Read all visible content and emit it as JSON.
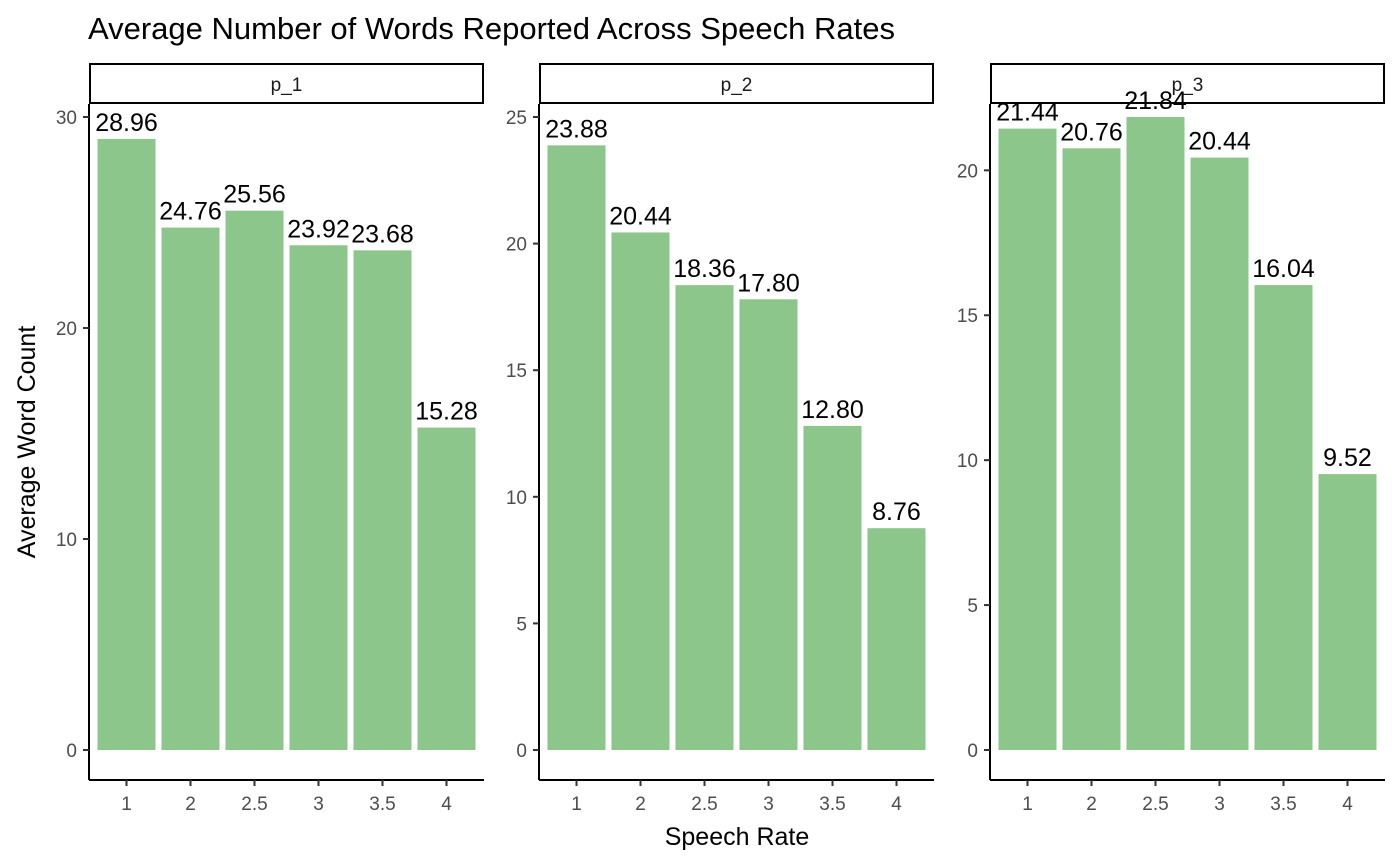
{
  "chart_data": {
    "type": "bar",
    "title": "Average Number of Words Reported Across Speech Rates",
    "xlabel": "Speech Rate",
    "ylabel": "Average Word Count",
    "categories": [
      "1",
      "2",
      "2.5",
      "3",
      "3.5",
      "4"
    ],
    "bar_color": "#8dc68a",
    "grid": false,
    "legend": "none",
    "panels": [
      {
        "name": "p_1",
        "values": [
          28.96,
          24.76,
          25.56,
          23.92,
          23.68,
          15.28
        ],
        "labels": [
          "28.96",
          "24.76",
          "25.56",
          "23.92",
          "23.68",
          "15.28"
        ],
        "ylim": [
          0,
          30
        ],
        "yticks": [
          0,
          10,
          20,
          30
        ]
      },
      {
        "name": "p_2",
        "values": [
          23.88,
          20.44,
          18.36,
          17.8,
          12.8,
          8.76
        ],
        "labels": [
          "23.88",
          "20.44",
          "18.36",
          "17.80",
          "12.80",
          "8.76"
        ],
        "ylim": [
          0,
          25
        ],
        "yticks": [
          0,
          5,
          10,
          15,
          20,
          25
        ]
      },
      {
        "name": "p_3",
        "values": [
          21.44,
          20.76,
          21.84,
          20.44,
          16.04,
          9.52
        ],
        "labels": [
          "21.44",
          "20.76",
          "21.84",
          "20.44",
          "16.04",
          "9.52"
        ],
        "ylim": [
          0,
          21.84
        ],
        "yticks": [
          0,
          5,
          10,
          15,
          20
        ]
      }
    ]
  }
}
